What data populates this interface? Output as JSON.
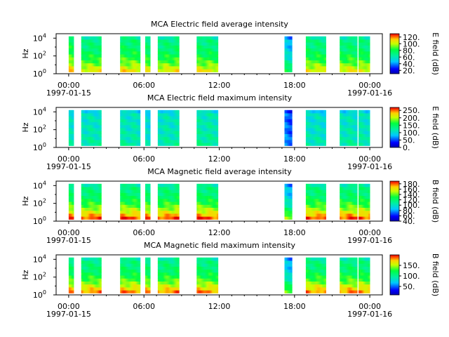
{
  "chart_data": [
    {
      "type": "heatmap",
      "title": "MCA  Electric field average intensity",
      "ylabel": "Hz",
      "yticks": [
        {
          "base": "10",
          "exp": "0"
        },
        {
          "base": "10",
          "exp": "2"
        },
        {
          "base": "10",
          "exp": "4"
        }
      ],
      "ylim_log10": [
        0,
        4.5
      ],
      "xlim_hours": [
        -1,
        25
      ],
      "xticks": [
        {
          "h": 0,
          "label": "00:00",
          "sub": "1997-01-15"
        },
        {
          "h": 6,
          "label": "06:00",
          "sub": ""
        },
        {
          "h": 12,
          "label": "12:00",
          "sub": ""
        },
        {
          "h": 18,
          "label": "18:00",
          "sub": ""
        },
        {
          "h": 24,
          "label": "00:00",
          "sub": "1997-01-16"
        }
      ],
      "colorbar": {
        "label": "E field (dB)",
        "min": 10,
        "max": 130,
        "ticks": [
          {
            "v": 20,
            "t": "20."
          },
          {
            "v": 40,
            "t": "40."
          },
          {
            "v": 60,
            "t": "60."
          },
          {
            "v": 80,
            "t": "80."
          },
          {
            "v": 100,
            "t": "100."
          },
          {
            "v": 120,
            "t": "120."
          }
        ]
      },
      "segments": [
        [
          0.0,
          0.4
        ],
        [
          1.0,
          2.6
        ],
        [
          4.1,
          5.7
        ],
        [
          6.1,
          6.5
        ],
        [
          7.1,
          8.8
        ],
        [
          10.2,
          11.9
        ],
        [
          17.2,
          17.8
        ],
        [
          18.9,
          20.5
        ],
        [
          21.6,
          23.0
        ],
        [
          23.1,
          24.0
        ]
      ],
      "segment_levels": [
        0.55,
        0.5,
        0.52,
        0.5,
        0.5,
        0.5,
        0.3,
        0.5,
        0.5,
        0.5
      ],
      "low_freq_enhancement": 0.3
    },
    {
      "type": "heatmap",
      "title": "MCA  Electric field maximum intensity",
      "ylabel": "Hz",
      "yticks": [
        {
          "base": "10",
          "exp": "0"
        },
        {
          "base": "10",
          "exp": "2"
        },
        {
          "base": "10",
          "exp": "4"
        }
      ],
      "ylim_log10": [
        0,
        4.5
      ],
      "xlim_hours": [
        -1,
        25
      ],
      "xticks": [
        {
          "h": 0,
          "label": "00:00",
          "sub": "1997-01-15"
        },
        {
          "h": 6,
          "label": "06:00",
          "sub": ""
        },
        {
          "h": 12,
          "label": "12:00",
          "sub": ""
        },
        {
          "h": 18,
          "label": "18:00",
          "sub": ""
        },
        {
          "h": 24,
          "label": "00:00",
          "sub": "1997-01-16"
        }
      ],
      "colorbar": {
        "label": "E field (dB)",
        "min": 0,
        "max": 270,
        "ticks": [
          {
            "v": 0,
            "t": "0."
          },
          {
            "v": 50,
            "t": "50."
          },
          {
            "v": 100,
            "t": "100."
          },
          {
            "v": 150,
            "t": "150."
          },
          {
            "v": 200,
            "t": "200."
          },
          {
            "v": 250,
            "t": "250."
          }
        ]
      },
      "segments": [
        [
          0.0,
          0.4
        ],
        [
          1.0,
          2.6
        ],
        [
          4.1,
          5.7
        ],
        [
          6.1,
          6.5
        ],
        [
          7.1,
          8.8
        ],
        [
          10.2,
          11.9
        ],
        [
          17.2,
          17.8
        ],
        [
          18.9,
          20.5
        ],
        [
          21.6,
          23.0
        ],
        [
          23.1,
          24.0
        ]
      ],
      "segment_levels": [
        0.38,
        0.4,
        0.4,
        0.36,
        0.4,
        0.42,
        0.2,
        0.38,
        0.4,
        0.4
      ],
      "low_freq_enhancement": 0.05
    },
    {
      "type": "heatmap",
      "title": "MCA  Magnetic field average intensity",
      "ylabel": "Hz",
      "yticks": [
        {
          "base": "10",
          "exp": "0"
        },
        {
          "base": "10",
          "exp": "2"
        },
        {
          "base": "10",
          "exp": "4"
        }
      ],
      "ylim_log10": [
        0,
        4.5
      ],
      "xlim_hours": [
        -1,
        25
      ],
      "xticks": [
        {
          "h": 0,
          "label": "00:00",
          "sub": "1997-01-15"
        },
        {
          "h": 6,
          "label": "06:00",
          "sub": ""
        },
        {
          "h": 12,
          "label": "12:00",
          "sub": ""
        },
        {
          "h": 18,
          "label": "18:00",
          "sub": ""
        },
        {
          "h": 24,
          "label": "00:00",
          "sub": "1997-01-16"
        }
      ],
      "colorbar": {
        "label": "B field (dB)",
        "min": 40,
        "max": 190,
        "ticks": [
          {
            "v": 40,
            "t": "40."
          },
          {
            "v": 60,
            "t": "60."
          },
          {
            "v": 80,
            "t": "80."
          },
          {
            "v": 100,
            "t": "100."
          },
          {
            "v": 120,
            "t": "120."
          },
          {
            "v": 140,
            "t": "140."
          },
          {
            "v": 160,
            "t": "160."
          },
          {
            "v": 180,
            "t": "180."
          }
        ]
      },
      "segments": [
        [
          0.0,
          0.4
        ],
        [
          1.0,
          2.6
        ],
        [
          4.1,
          5.7
        ],
        [
          6.1,
          6.5
        ],
        [
          7.1,
          8.8
        ],
        [
          10.2,
          11.9
        ],
        [
          17.2,
          17.8
        ],
        [
          18.9,
          20.5
        ],
        [
          21.6,
          23.0
        ],
        [
          23.1,
          24.0
        ]
      ],
      "segment_levels": [
        0.5,
        0.5,
        0.5,
        0.5,
        0.5,
        0.5,
        0.3,
        0.5,
        0.5,
        0.5
      ],
      "low_freq_enhancement": 0.45
    },
    {
      "type": "heatmap",
      "title": "MCA  Magnetic field maximum intensity",
      "ylabel": "Hz",
      "yticks": [
        {
          "base": "10",
          "exp": "0"
        },
        {
          "base": "10",
          "exp": "2"
        },
        {
          "base": "10",
          "exp": "4"
        }
      ],
      "ylim_log10": [
        0,
        4.5
      ],
      "xlim_hours": [
        -1,
        25
      ],
      "xticks": [
        {
          "h": 0,
          "label": "00:00",
          "sub": "1997-01-15"
        },
        {
          "h": 6,
          "label": "06:00",
          "sub": ""
        },
        {
          "h": 12,
          "label": "12:00",
          "sub": ""
        },
        {
          "h": 18,
          "label": "18:00",
          "sub": ""
        },
        {
          "h": 24,
          "label": "00:00",
          "sub": "1997-01-16"
        }
      ],
      "colorbar": {
        "label": "B field (dB)",
        "min": 10,
        "max": 200,
        "ticks": [
          {
            "v": 50,
            "t": "50."
          },
          {
            "v": 100,
            "t": "100."
          },
          {
            "v": 150,
            "t": "150."
          }
        ]
      },
      "segments": [
        [
          0.0,
          0.4
        ],
        [
          1.0,
          2.6
        ],
        [
          4.1,
          5.7
        ],
        [
          6.1,
          6.5
        ],
        [
          7.1,
          8.8
        ],
        [
          10.2,
          11.9
        ],
        [
          17.2,
          17.8
        ],
        [
          18.9,
          20.5
        ],
        [
          21.6,
          23.0
        ],
        [
          23.1,
          24.0
        ]
      ],
      "segment_levels": [
        0.5,
        0.5,
        0.5,
        0.5,
        0.5,
        0.5,
        0.3,
        0.5,
        0.5,
        0.5
      ],
      "low_freq_enhancement": 0.4
    }
  ]
}
